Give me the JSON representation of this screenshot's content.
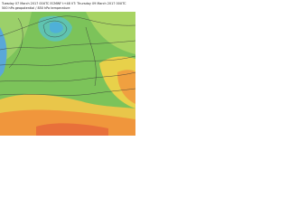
{
  "header": {
    "line1": "Tuesday 07 March 2017 00UTC ECMWF t+48 VT: Thursday 09 March 2017 00UTC",
    "line2": "500 hPa geopotential / 850 hPa temperature"
  }
}
